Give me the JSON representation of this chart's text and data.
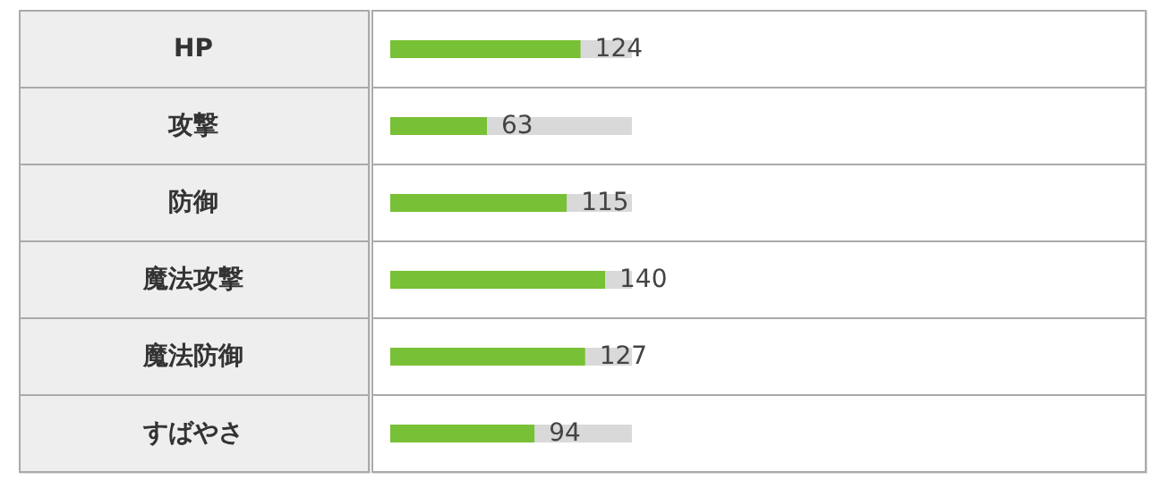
{
  "chart_data": {
    "type": "bar",
    "orientation": "horizontal",
    "categories": [
      "HP",
      "攻撃",
      "防御",
      "魔法攻撃",
      "魔法防御",
      "すばやさ"
    ],
    "values": [
      124,
      63,
      115,
      140,
      127,
      94
    ],
    "color": "#78c035",
    "data_labels": true
  }
}
